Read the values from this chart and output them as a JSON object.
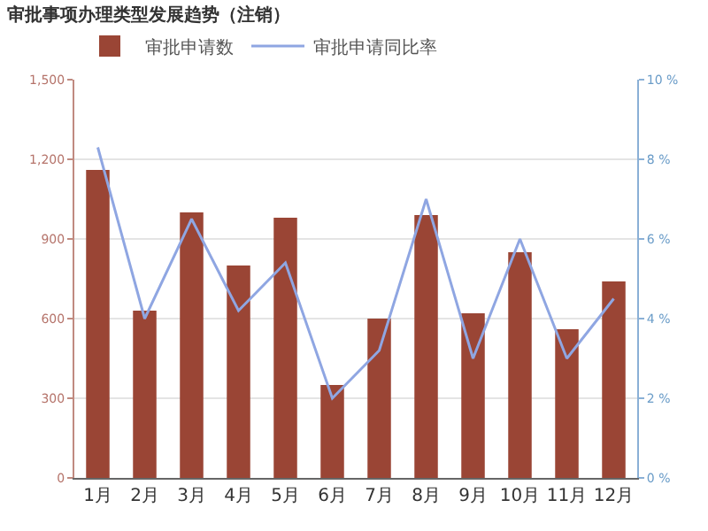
{
  "chart_data": {
    "type": "bar",
    "title": "审批事项办理类型发展趋势（注销）",
    "categories": [
      "1月",
      "2月",
      "3月",
      "4月",
      "5月",
      "6月",
      "7月",
      "8月",
      "9月",
      "10月",
      "11月",
      "12月"
    ],
    "series": [
      {
        "name": "审批申请数",
        "color": "#9a4535",
        "values": [
          1160,
          630,
          1000,
          800,
          980,
          350,
          600,
          990,
          620,
          850,
          560,
          740
        ]
      },
      {
        "name": "审批申请同比率",
        "type": "line",
        "axis": "y2",
        "color": "#8fa6e2",
        "marker": "none",
        "values": [
          8.3,
          4.0,
          6.5,
          4.2,
          5.4,
          2.0,
          3.2,
          7.0,
          3.0,
          6.0,
          3.0,
          4.5
        ]
      }
    ],
    "ylim": [
      0,
      1500
    ],
    "yticks": [
      0,
      {
        "value": 300,
        "label": "300"
      },
      {
        "value": 600,
        "label": "600"
      },
      {
        "value": 900,
        "label": "900"
      },
      {
        "value": 1200,
        "label": "1,200"
      },
      {
        "value": 1500,
        "label": "1,500"
      }
    ],
    "y2lim": [
      0,
      10
    ],
    "y2ticks": [
      {
        "value": 0,
        "label": "0 %"
      },
      {
        "value": 2,
        "label": "2 %"
      },
      {
        "value": 4,
        "label": "4 %"
      },
      {
        "value": 6,
        "label": "6 %"
      },
      {
        "value": 8,
        "label": "8 %"
      },
      {
        "value": 10,
        "label": "10 %"
      }
    ],
    "grid": "y",
    "legend": "top left"
  }
}
